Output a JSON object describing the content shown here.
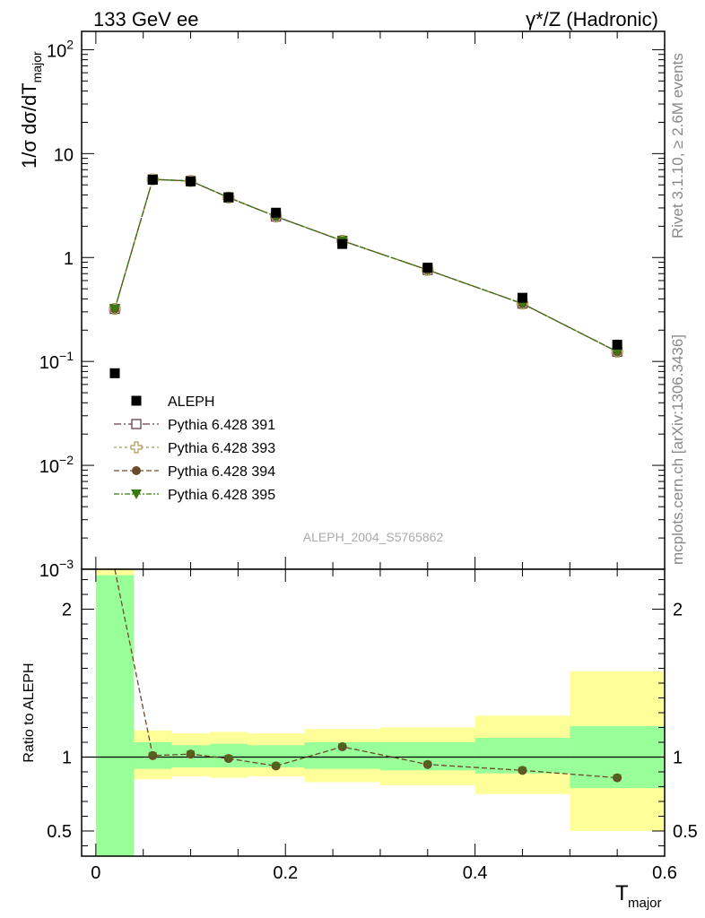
{
  "header": {
    "left_title": "133 GeV ee",
    "right_title": "γ*/Z (Hadronic)"
  },
  "side_labels": {
    "rivet": "Rivet 3.1.10, ≥ 2.6M events",
    "mcplots": "mcplots.cern.ch [arXiv:1306.3436]"
  },
  "analysis_id": "ALEPH_2004_S5765862",
  "colors": {
    "data": "#000000",
    "pythia391": "#6b3a4a",
    "pythia393": "#a89a55",
    "pythia394": "#6b4a2a",
    "pythia395": "#3a7a10",
    "band_inner": "#99ff99",
    "band_outer": "#ffff99"
  },
  "chart_data": [
    {
      "type": "scatter",
      "panel": "main",
      "ylabel": "1/σ  dσ/dT_major",
      "yscale": "log",
      "ylim": [
        0.001,
        150
      ],
      "xlim": [
        -0.015,
        0.6
      ],
      "y_ticks": [
        "10^2",
        "10",
        "1",
        "10^-1",
        "10^-2",
        "10^-3"
      ],
      "legend_position": "middle-left",
      "data": {
        "name": "ALEPH",
        "x": [
          0.02,
          0.06,
          0.1,
          0.14,
          0.19,
          0.26,
          0.35,
          0.45,
          0.55
        ],
        "y": [
          0.077,
          5.6,
          5.4,
          3.8,
          2.7,
          1.35,
          0.8,
          0.41,
          0.145
        ]
      },
      "series": [
        {
          "name": "Pythia 6.428 391",
          "marker": "open-square",
          "y": [
            0.32,
            5.65,
            5.45,
            3.78,
            2.48,
            1.45,
            0.76,
            0.36,
            0.124
          ]
        },
        {
          "name": "Pythia 6.428 393",
          "marker": "open-cross",
          "y": [
            0.32,
            5.65,
            5.45,
            3.78,
            2.48,
            1.45,
            0.76,
            0.36,
            0.124
          ]
        },
        {
          "name": "Pythia 6.428 394",
          "marker": "filled-circle",
          "y": [
            0.32,
            5.65,
            5.45,
            3.78,
            2.48,
            1.45,
            0.76,
            0.36,
            0.124
          ]
        },
        {
          "name": "Pythia 6.428 395",
          "marker": "filled-triangle-down",
          "y": [
            0.32,
            5.65,
            5.45,
            3.78,
            2.48,
            1.45,
            0.76,
            0.36,
            0.124
          ]
        }
      ]
    },
    {
      "type": "line",
      "panel": "ratio",
      "ylabel": "Ratio to ALEPH",
      "xlabel": "T_major",
      "ylim": [
        0.33,
        2.27
      ],
      "xlim": [
        -0.015,
        0.6
      ],
      "x_ticks": [
        "0",
        "0.2",
        "0.4",
        "0.6"
      ],
      "y_ticks": [
        "2",
        "1",
        "0.5"
      ],
      "bins": [
        [
          0.0,
          0.04
        ],
        [
          0.04,
          0.08
        ],
        [
          0.08,
          0.12
        ],
        [
          0.12,
          0.16
        ],
        [
          0.16,
          0.22
        ],
        [
          0.22,
          0.3
        ],
        [
          0.3,
          0.4
        ],
        [
          0.4,
          0.5
        ],
        [
          0.5,
          0.6
        ]
      ],
      "band_inner": [
        [
          0.33,
          2.23
        ],
        [
          0.92,
          1.1
        ],
        [
          0.93,
          1.08
        ],
        [
          0.93,
          1.09
        ],
        [
          0.93,
          1.08
        ],
        [
          0.92,
          1.1
        ],
        [
          0.91,
          1.1
        ],
        [
          0.89,
          1.13
        ],
        [
          0.79,
          1.21
        ]
      ],
      "band_outer": [
        [
          0.33,
          2.27
        ],
        [
          0.85,
          1.18
        ],
        [
          0.87,
          1.16
        ],
        [
          0.86,
          1.17
        ],
        [
          0.87,
          1.16
        ],
        [
          0.83,
          1.19
        ],
        [
          0.81,
          1.2
        ],
        [
          0.75,
          1.28
        ],
        [
          0.5,
          1.58
        ]
      ],
      "x": [
        0.02,
        0.06,
        0.1,
        0.14,
        0.19,
        0.26,
        0.35,
        0.45,
        0.55
      ],
      "ratio_start": 2.27,
      "ratio": [
        1.01,
        1.02,
        0.99,
        0.94,
        1.07,
        0.95,
        0.91,
        0.86
      ]
    }
  ]
}
